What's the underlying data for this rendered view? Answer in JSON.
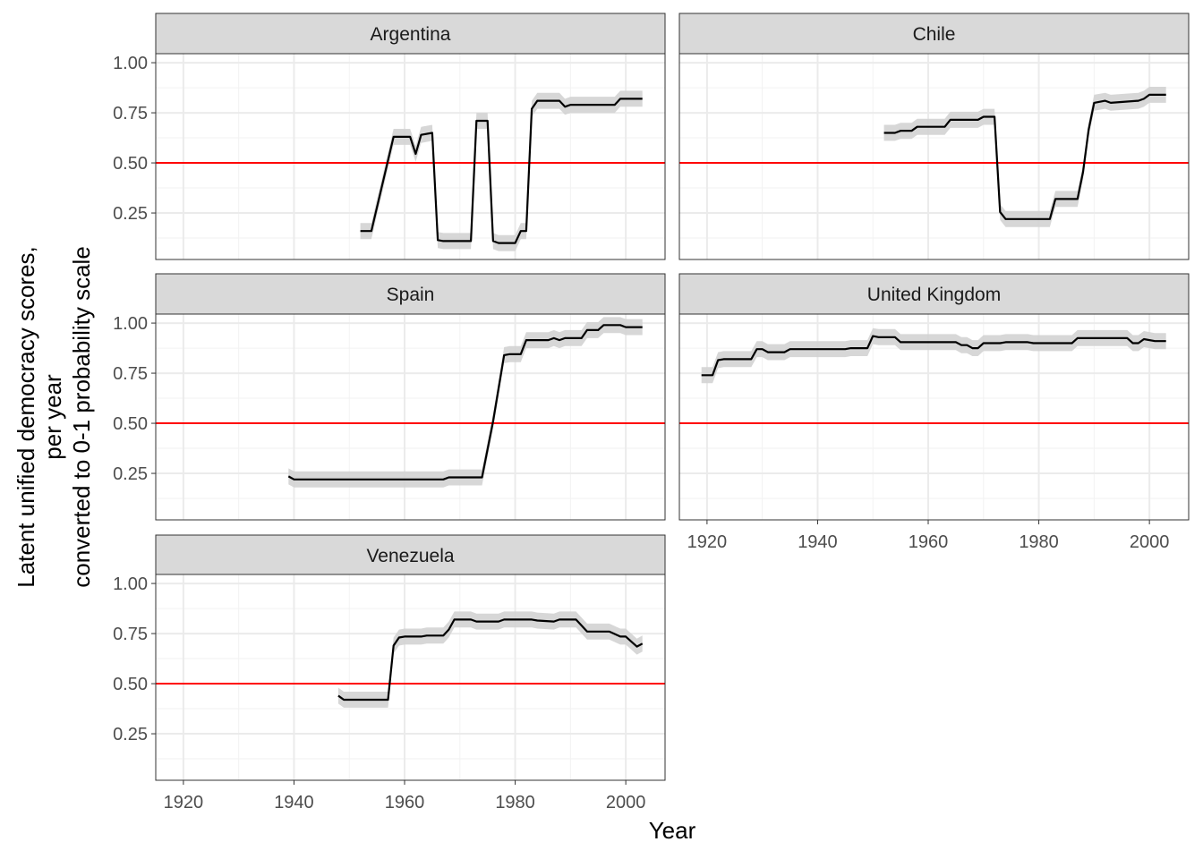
{
  "chart_data": {
    "type": "line",
    "xlabel": "Year",
    "ylabel_lines": [
      "Latent unified democracy scores,",
      "per year",
      "converted to 0-1 probability scale"
    ],
    "xlim": [
      1915,
      2007.1
    ],
    "ylim": [
      0.018,
      1.045
    ],
    "x_ticks": [
      1920,
      1940,
      1960,
      1980,
      2000
    ],
    "x_tick_labels": [
      "1920",
      "1940",
      "1960",
      "1980",
      "2000"
    ],
    "y_ticks": [
      0.25,
      0.5,
      0.75,
      1.0
    ],
    "y_tick_labels": [
      "0.25",
      "0.50",
      "0.75",
      "1.00"
    ],
    "reference_line": {
      "value": 0.5,
      "color": "#ff0000"
    },
    "line_color": "#000000",
    "band_color": "#d3d3d3",
    "band_halfwidth": 0.04,
    "grid": true,
    "panels": [
      {
        "name": "Argentina",
        "x": [
          1952,
          1954,
          1958,
          1961,
          1962,
          1963,
          1965,
          1966,
          1967,
          1972,
          1973,
          1975,
          1976,
          1977,
          1980,
          1981,
          1982,
          1983,
          1984,
          1988,
          1989,
          1990,
          1998,
          1999,
          2003
        ],
        "y": [
          0.16,
          0.16,
          0.63,
          0.63,
          0.545,
          0.64,
          0.65,
          0.115,
          0.11,
          0.11,
          0.71,
          0.71,
          0.11,
          0.1,
          0.1,
          0.16,
          0.16,
          0.77,
          0.81,
          0.81,
          0.78,
          0.79,
          0.79,
          0.82,
          0.82
        ]
      },
      {
        "name": "Chile",
        "x": [
          1952,
          1954,
          1955,
          1957,
          1958,
          1963,
          1964,
          1969,
          1970,
          1972,
          1973,
          1974,
          1982,
          1983,
          1987,
          1988,
          1989,
          1990,
          1992,
          1993,
          1998,
          1999,
          2000,
          2003
        ],
        "y": [
          0.65,
          0.65,
          0.66,
          0.66,
          0.68,
          0.68,
          0.715,
          0.715,
          0.73,
          0.73,
          0.255,
          0.22,
          0.22,
          0.32,
          0.32,
          0.455,
          0.665,
          0.8,
          0.81,
          0.8,
          0.81,
          0.82,
          0.84,
          0.84
        ]
      },
      {
        "name": "Spain",
        "x": [
          1939,
          1940,
          1967,
          1968,
          1974,
          1976,
          1978,
          1979,
          1981,
          1982,
          1986,
          1987,
          1988,
          1989,
          1992,
          1993,
          1995,
          1996,
          1999,
          2000,
          2003
        ],
        "y": [
          0.235,
          0.22,
          0.22,
          0.23,
          0.23,
          0.51,
          0.84,
          0.845,
          0.845,
          0.915,
          0.915,
          0.925,
          0.915,
          0.925,
          0.925,
          0.965,
          0.965,
          0.99,
          0.99,
          0.98,
          0.98
        ]
      },
      {
        "name": "United Kingdom",
        "x": [
          1919,
          1921,
          1922,
          1923,
          1928,
          1929,
          1930,
          1931,
          1934,
          1935,
          1945,
          1946,
          1949,
          1950,
          1951,
          1954,
          1955,
          1965,
          1966,
          1967,
          1968,
          1969,
          1970,
          1973,
          1974,
          1978,
          1979,
          1986,
          1987,
          1996,
          1997,
          1998,
          1999,
          2001,
          2003
        ],
        "y": [
          0.74,
          0.74,
          0.815,
          0.82,
          0.82,
          0.87,
          0.87,
          0.855,
          0.855,
          0.87,
          0.87,
          0.875,
          0.875,
          0.935,
          0.93,
          0.93,
          0.905,
          0.905,
          0.89,
          0.89,
          0.875,
          0.875,
          0.9,
          0.9,
          0.905,
          0.905,
          0.9,
          0.9,
          0.925,
          0.925,
          0.9,
          0.9,
          0.92,
          0.91,
          0.91
        ]
      },
      {
        "name": "Venezuela",
        "x": [
          1948,
          1949,
          1957,
          1958,
          1959,
          1960,
          1963,
          1964,
          1967,
          1968,
          1969,
          1972,
          1973,
          1977,
          1978,
          1983,
          1984,
          1987,
          1988,
          1991,
          1993,
          1997,
          1999,
          2000,
          2002,
          2003
        ],
        "y": [
          0.44,
          0.42,
          0.42,
          0.69,
          0.73,
          0.735,
          0.735,
          0.74,
          0.74,
          0.77,
          0.82,
          0.82,
          0.81,
          0.81,
          0.82,
          0.82,
          0.815,
          0.81,
          0.82,
          0.82,
          0.76,
          0.76,
          0.735,
          0.735,
          0.685,
          0.7
        ]
      }
    ]
  }
}
